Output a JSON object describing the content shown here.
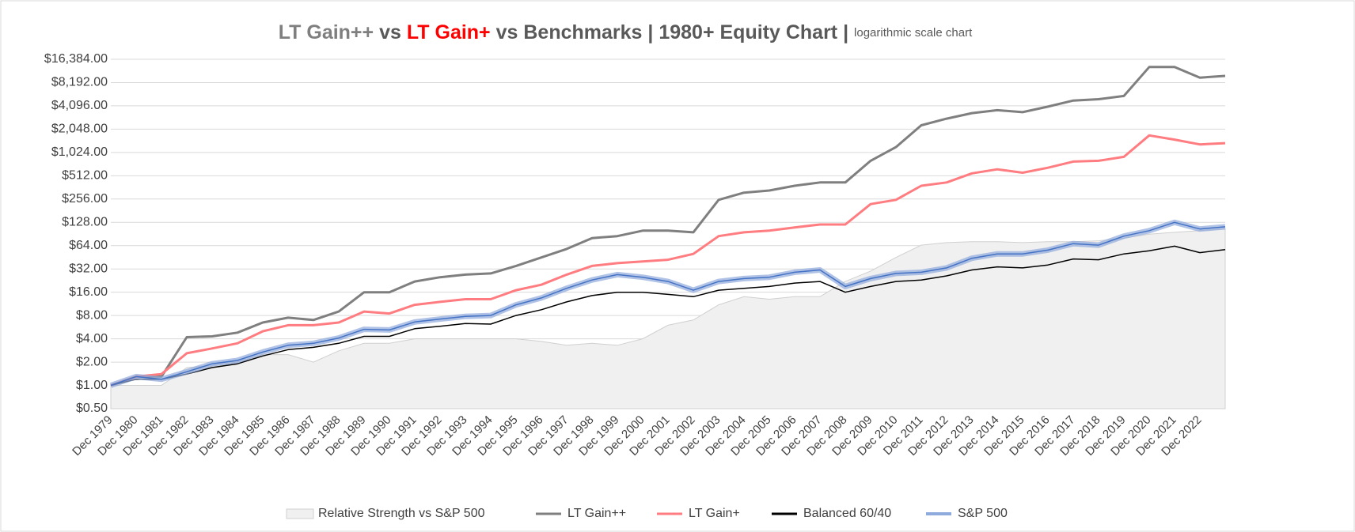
{
  "chart_data": {
    "type": "line",
    "title": [
      {
        "text": "LT Gain++",
        "color": "#7f7f7f"
      },
      {
        "text": "vs",
        "color": "#595959"
      },
      {
        "text": "LT Gain+",
        "color": "#ff0000"
      },
      {
        "text": "vs Benchmarks | 1980+ Equity Chart |",
        "color": "#595959"
      },
      {
        "text": "logarithmic scale chart",
        "color": "#595959"
      }
    ],
    "log_scale": true,
    "grid": true,
    "legend": "bottom",
    "categories": [
      "Dec 1979",
      "Dec 1980",
      "Dec 1981",
      "Dec 1982",
      "Dec 1983",
      "Dec 1984",
      "Dec 1985",
      "Dec 1986",
      "Dec 1987",
      "Dec 1988",
      "Dec 1989",
      "Dec 1990",
      "Dec 1991",
      "Dec 1992",
      "Dec 1993",
      "Dec 1994",
      "Dec 1995",
      "Dec 1996",
      "Dec 1997",
      "Dec 1998",
      "Dec 1999",
      "Dec 2000",
      "Dec 2001",
      "Dec 2002",
      "Dec 2003",
      "Dec 2004",
      "Dec 2005",
      "Dec 2006",
      "Dec 2007",
      "Dec 2008",
      "Dec 2009",
      "Dec 2010",
      "Dec 2011",
      "Dec 2012",
      "Dec 2013",
      "Dec 2014",
      "Dec 2015",
      "Dec 2016",
      "Dec 2017",
      "Dec 2018",
      "Dec 2019",
      "Dec 2020",
      "Dec 2021",
      "Dec 2022",
      null
    ],
    "ylim": [
      0.5,
      16384
    ],
    "yticks": [
      {
        "value": 0.5,
        "label": "$0.50"
      },
      {
        "value": 1,
        "label": "$1.00"
      },
      {
        "value": 2,
        "label": "$2.00"
      },
      {
        "value": 4,
        "label": "$4.00"
      },
      {
        "value": 8,
        "label": "$8.00"
      },
      {
        "value": 16,
        "label": "$16.00"
      },
      {
        "value": 32,
        "label": "$32.00"
      },
      {
        "value": 64,
        "label": "$64.00"
      },
      {
        "value": 128,
        "label": "$128.00"
      },
      {
        "value": 256,
        "label": "$256.00"
      },
      {
        "value": 512,
        "label": "$512.00"
      },
      {
        "value": 1024,
        "label": "$1,024.00"
      },
      {
        "value": 2048,
        "label": "$2,048.00"
      },
      {
        "value": 4096,
        "label": "$4,096.00"
      },
      {
        "value": 8192,
        "label": "$8,192.00"
      },
      {
        "value": 16384,
        "label": "$16,384.00"
      }
    ],
    "series": [
      {
        "name": "Relative Strength vs S&P 500",
        "kind": "area",
        "color": "#f0f0f0",
        "values": [
          1,
          1,
          1,
          1.7,
          1.8,
          2,
          2.5,
          2.5,
          2,
          2.8,
          3.5,
          3.5,
          4,
          4,
          4,
          4,
          4,
          3.7,
          3.3,
          3.5,
          3.3,
          4,
          6,
          7,
          11,
          14,
          13,
          14,
          14,
          22,
          30,
          45,
          65,
          70,
          72,
          72,
          70,
          72,
          72,
          74,
          80,
          90,
          95,
          100,
          105
        ]
      },
      {
        "name": "LT Gain++",
        "kind": "line",
        "color": "#7f7f7f",
        "values": [
          1,
          1.3,
          1.3,
          4.2,
          4.3,
          4.8,
          6.5,
          7.5,
          7,
          9,
          16,
          16,
          22,
          25,
          27,
          28,
          35,
          45,
          58,
          80,
          85,
          100,
          100,
          95,
          250,
          310,
          330,
          380,
          420,
          420,
          800,
          1200,
          2300,
          2800,
          3300,
          3600,
          3400,
          4000,
          4800,
          5000,
          5500,
          13000,
          13000,
          9500,
          10000
        ]
      },
      {
        "name": "LT Gain+",
        "kind": "line",
        "color": "#ff7c80",
        "values": [
          1,
          1.3,
          1.4,
          2.6,
          3,
          3.5,
          5,
          6,
          6,
          6.5,
          9,
          8.5,
          11,
          12,
          13,
          13,
          17,
          20,
          27,
          35,
          38,
          40,
          42,
          50,
          85,
          95,
          100,
          110,
          120,
          120,
          220,
          250,
          380,
          420,
          550,
          620,
          560,
          650,
          780,
          800,
          900,
          1700,
          1500,
          1300,
          1350
        ]
      },
      {
        "name": "Balanced 60/40",
        "kind": "line",
        "color": "#000000",
        "values": [
          1,
          1.2,
          1.2,
          1.4,
          1.7,
          1.9,
          2.4,
          2.9,
          3.1,
          3.5,
          4.3,
          4.3,
          5.4,
          5.8,
          6.3,
          6.2,
          8,
          9.5,
          12,
          14.5,
          16,
          16,
          15,
          14,
          17,
          18,
          19,
          21,
          22,
          16,
          19,
          22,
          23,
          26,
          31,
          34,
          33,
          36,
          43,
          42,
          50,
          55,
          63,
          52,
          57
        ]
      },
      {
        "name": "S&P 500",
        "kind": "glow",
        "color": "#8faadc",
        "values": [
          1,
          1.3,
          1.2,
          1.5,
          1.9,
          2.1,
          2.7,
          3.3,
          3.5,
          4.1,
          5.3,
          5.2,
          6.6,
          7.2,
          7.8,
          8,
          11,
          13.5,
          18,
          23,
          27,
          25,
          22,
          17,
          22,
          24,
          25,
          29,
          31,
          19,
          24,
          28,
          29,
          33,
          44,
          50,
          50,
          56,
          68,
          65,
          85,
          100,
          128,
          105,
          112
        ]
      }
    ]
  }
}
